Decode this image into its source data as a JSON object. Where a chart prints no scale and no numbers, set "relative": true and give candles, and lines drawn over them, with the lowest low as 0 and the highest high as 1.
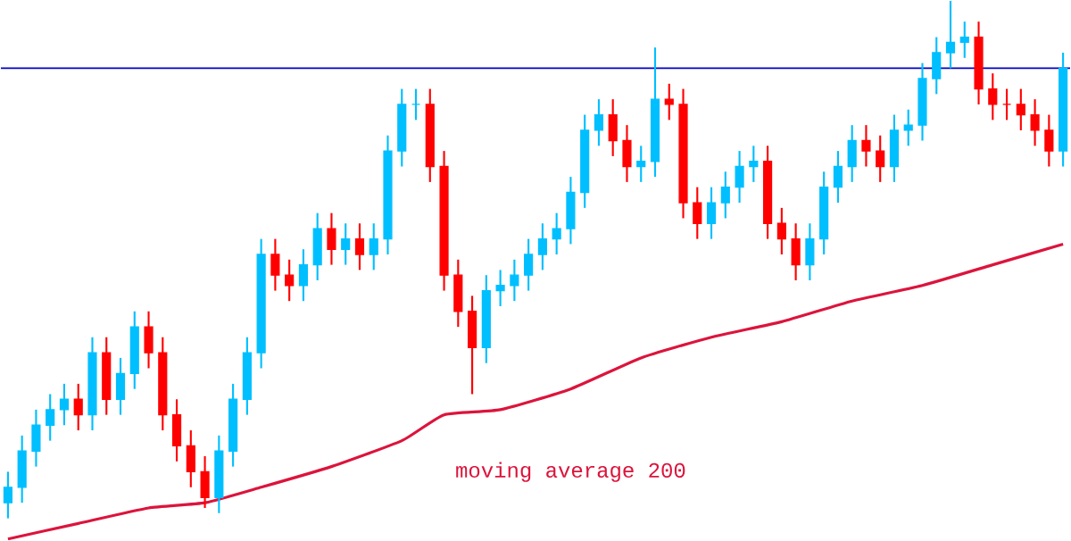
{
  "chart_data": {
    "type": "candlestick",
    "relative": true,
    "categories": [
      null,
      null,
      null,
      null,
      null,
      null,
      null,
      null,
      null,
      null,
      null,
      null,
      null,
      null,
      null,
      null,
      null,
      null,
      null,
      null,
      null,
      null,
      null,
      null,
      null,
      null,
      null,
      null,
      null,
      null,
      null,
      null,
      null,
      null,
      null,
      null,
      null,
      null,
      null,
      null,
      null,
      null,
      null,
      null,
      null,
      null,
      null,
      null,
      null,
      null,
      null,
      null,
      null,
      null,
      null,
      null,
      null,
      null,
      null,
      null,
      null,
      null,
      null,
      null,
      null,
      null,
      null,
      null,
      null,
      null,
      null,
      null,
      null,
      null,
      null,
      null
    ],
    "ohlc": [
      [
        0.03,
        0.09,
        0,
        0.06
      ],
      [
        0.06,
        0.16,
        0.03,
        0.13
      ],
      [
        0.13,
        0.21,
        0.1,
        0.18
      ],
      [
        0.18,
        0.24,
        0.15,
        0.21
      ],
      [
        0.21,
        0.26,
        0.18,
        0.23
      ],
      [
        0.23,
        0.26,
        0.17,
        0.2
      ],
      [
        0.2,
        0.35,
        0.17,
        0.32
      ],
      [
        0.32,
        0.35,
        0.2,
        0.23
      ],
      [
        0.23,
        0.31,
        0.2,
        0.28
      ],
      [
        0.28,
        0.4,
        0.25,
        0.37
      ],
      [
        0.37,
        0.4,
        0.29,
        0.32
      ],
      [
        0.32,
        0.35,
        0.17,
        0.2
      ],
      [
        0.2,
        0.23,
        0.11,
        0.14
      ],
      [
        0.14,
        0.17,
        0.06,
        0.09
      ],
      [
        0.09,
        0.12,
        0.02,
        0.04
      ],
      [
        0.04,
        0.16,
        0.01,
        0.13
      ],
      [
        0.13,
        0.26,
        0.1,
        0.23
      ],
      [
        0.23,
        0.35,
        0.2,
        0.32
      ],
      [
        0.32,
        0.54,
        0.29,
        0.51
      ],
      [
        0.51,
        0.54,
        0.44,
        0.47
      ],
      [
        0.47,
        0.5,
        0.42,
        0.45
      ],
      [
        0.45,
        0.52,
        0.42,
        0.49
      ],
      [
        0.49,
        0.59,
        0.46,
        0.56
      ],
      [
        0.56,
        0.59,
        0.49,
        0.52
      ],
      [
        0.52,
        0.57,
        0.49,
        0.54
      ],
      [
        0.54,
        0.57,
        0.48,
        0.51
      ],
      [
        0.51,
        0.57,
        0.48,
        0.54
      ],
      [
        0.54,
        0.74,
        0.51,
        0.71
      ],
      [
        0.71,
        0.83,
        0.68,
        0.8
      ],
      [
        0.8,
        0.83,
        0.77,
        0.8
      ],
      [
        0.8,
        0.83,
        0.65,
        0.68
      ],
      [
        0.68,
        0.71,
        0.44,
        0.47
      ],
      [
        0.47,
        0.5,
        0.37,
        0.4
      ],
      [
        0.4,
        0.43,
        0.24,
        0.33
      ],
      [
        0.33,
        0.47,
        0.3,
        0.44
      ],
      [
        0.44,
        0.48,
        0.41,
        0.45
      ],
      [
        0.45,
        0.5,
        0.42,
        0.47
      ],
      [
        0.47,
        0.54,
        0.44,
        0.51
      ],
      [
        0.51,
        0.57,
        0.48,
        0.54
      ],
      [
        0.54,
        0.59,
        0.51,
        0.56
      ],
      [
        0.56,
        0.66,
        0.53,
        0.63
      ],
      [
        0.63,
        0.78,
        0.6,
        0.75
      ],
      [
        0.75,
        0.81,
        0.72,
        0.78
      ],
      [
        0.78,
        0.81,
        0.7,
        0.73
      ],
      [
        0.73,
        0.76,
        0.65,
        0.68
      ],
      [
        0.68,
        0.72,
        0.65,
        0.69
      ],
      [
        0.69,
        0.91,
        0.66,
        0.81
      ],
      [
        0.81,
        0.84,
        0.77,
        0.8
      ],
      [
        0.8,
        0.83,
        0.58,
        0.61
      ],
      [
        0.61,
        0.64,
        0.54,
        0.57
      ],
      [
        0.57,
        0.64,
        0.54,
        0.61
      ],
      [
        0.61,
        0.67,
        0.58,
        0.64
      ],
      [
        0.64,
        0.71,
        0.61,
        0.68
      ],
      [
        0.68,
        0.72,
        0.65,
        0.69
      ],
      [
        0.69,
        0.72,
        0.54,
        0.57
      ],
      [
        0.57,
        0.6,
        0.51,
        0.54
      ],
      [
        0.54,
        0.57,
        0.46,
        0.49
      ],
      [
        0.49,
        0.57,
        0.46,
        0.54
      ],
      [
        0.54,
        0.67,
        0.51,
        0.64
      ],
      [
        0.64,
        0.71,
        0.61,
        0.68
      ],
      [
        0.68,
        0.76,
        0.65,
        0.73
      ],
      [
        0.73,
        0.76,
        0.68,
        0.71
      ],
      [
        0.71,
        0.74,
        0.65,
        0.68
      ],
      [
        0.68,
        0.78,
        0.65,
        0.75
      ],
      [
        0.75,
        0.79,
        0.72,
        0.76
      ],
      [
        0.76,
        0.88,
        0.73,
        0.85
      ],
      [
        0.85,
        0.93,
        0.82,
        0.9
      ],
      [
        0.9,
        1,
        0.87,
        0.92
      ],
      [
        0.92,
        0.96,
        0.89,
        0.93
      ],
      [
        0.93,
        0.96,
        0.8,
        0.83
      ],
      [
        0.83,
        0.86,
        0.77,
        0.8
      ],
      [
        0.8,
        0.83,
        0.77,
        0.8
      ],
      [
        0.8,
        0.83,
        0.75,
        0.78
      ],
      [
        0.78,
        0.81,
        0.72,
        0.75
      ],
      [
        0.75,
        0.78,
        0.68,
        0.71
      ],
      [
        0.71,
        0.9,
        0.68,
        0.87
      ]
    ],
    "colors": [
      "#00bfff",
      "#00bfff",
      "#00bfff",
      "#00bfff",
      "#00bfff",
      "#ff0000",
      "#00bfff",
      "#ff0000",
      "#00bfff",
      "#00bfff",
      "#ff0000",
      "#ff0000",
      "#ff0000",
      "#ff0000",
      "#ff0000",
      "#00bfff",
      "#00bfff",
      "#00bfff",
      "#00bfff",
      "#ff0000",
      "#ff0000",
      "#00bfff",
      "#00bfff",
      "#ff0000",
      "#00bfff",
      "#ff0000",
      "#00bfff",
      "#00bfff",
      "#00bfff",
      "#00bfff",
      "#ff0000",
      "#ff0000",
      "#ff0000",
      "#ff0000",
      "#00bfff",
      "#00bfff",
      "#00bfff",
      "#00bfff",
      "#00bfff",
      "#00bfff",
      "#00bfff",
      "#00bfff",
      "#00bfff",
      "#ff0000",
      "#ff0000",
      "#00bfff",
      "#00bfff",
      "#ff0000",
      "#ff0000",
      "#ff0000",
      "#00bfff",
      "#00bfff",
      "#00bfff",
      "#00bfff",
      "#ff0000",
      "#ff0000",
      "#ff0000",
      "#00bfff",
      "#00bfff",
      "#00bfff",
      "#00bfff",
      "#ff0000",
      "#ff0000",
      "#00bfff",
      "#00bfff",
      "#00bfff",
      "#00bfff",
      "#00bfff",
      "#00bfff",
      "#ff0000",
      "#ff0000",
      "#ff0000",
      "#ff0000",
      "#ff0000",
      "#ff0000",
      "#00bfff"
    ],
    "series": [
      {
        "type": "line",
        "name": "moving average 200",
        "color": "#dc143c",
        "values": [
          -0.04,
          null,
          null,
          null,
          null,
          -0.01,
          null,
          null,
          null,
          null,
          0.02,
          null,
          null,
          null,
          0.03,
          null,
          null,
          null,
          0.06,
          null,
          null,
          null,
          null,
          0.1,
          null,
          null,
          null,
          null,
          0.15,
          null,
          null,
          0.2,
          null,
          null,
          null,
          0.21,
          null,
          null,
          null,
          null,
          0.25,
          null,
          null,
          null,
          null,
          0.31,
          null,
          null,
          null,
          null,
          0.35,
          null,
          null,
          null,
          null,
          0.38,
          null,
          null,
          null,
          null,
          0.42,
          null,
          null,
          null,
          null,
          0.45,
          null,
          null,
          null,
          null,
          0.49,
          null,
          null,
          null,
          null,
          0.53
        ]
      }
    ],
    "ref_lines": [
      {
        "axis": "y",
        "value": 0.87,
        "color": "#0000cc"
      }
    ]
  }
}
